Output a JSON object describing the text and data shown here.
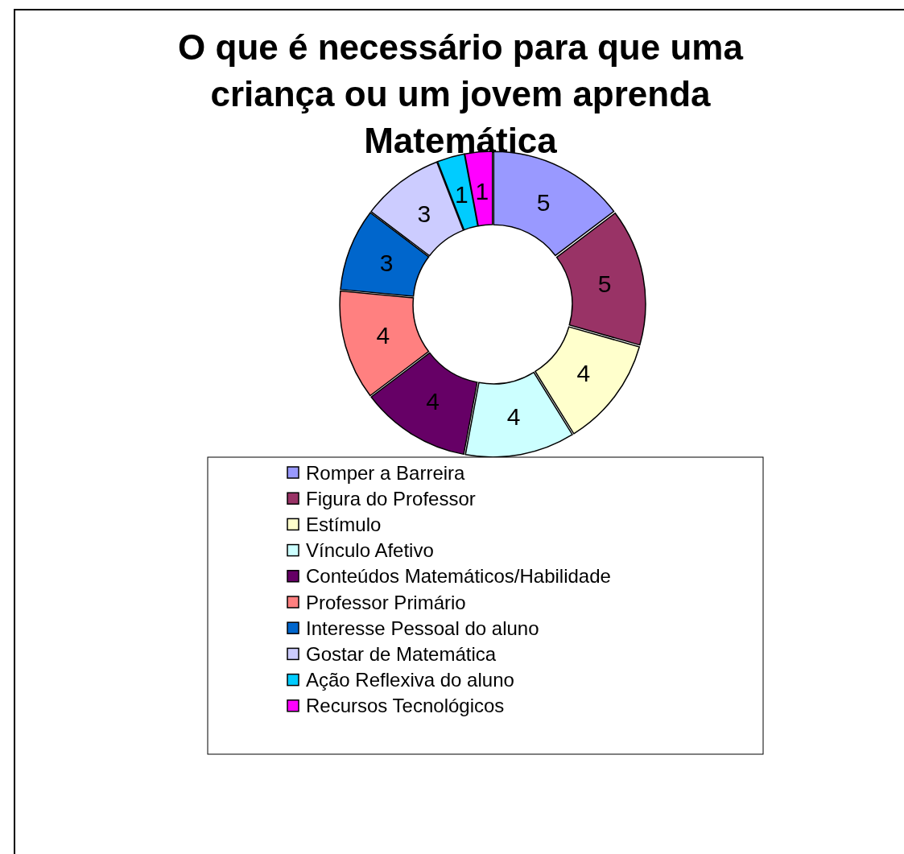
{
  "chart_data": {
    "type": "donut",
    "title": "O que é necessário para que uma criança ou um jovem aprenda Matemática",
    "categories": [
      "Romper a Barreira",
      "Figura do Professor",
      "Estímulo",
      "Vínculo Afetivo",
      "Conteúdos Matemáticos/Habilidade",
      "Professor Primário",
      "Interesse Pessoal do aluno",
      "Gostar de Matemática",
      "Ação Reflexiva do aluno",
      "Recursos Tecnológicos"
    ],
    "values": [
      5,
      5,
      4,
      4,
      4,
      4,
      3,
      3,
      1,
      1
    ],
    "colors": [
      "#9999ff",
      "#993366",
      "#ffffcc",
      "#ccffff",
      "#660066",
      "#ff8080",
      "#0066cc",
      "#ccccff",
      "#00ccff",
      "#ff00ff"
    ],
    "data_labels": true,
    "legend": "bottom"
  }
}
